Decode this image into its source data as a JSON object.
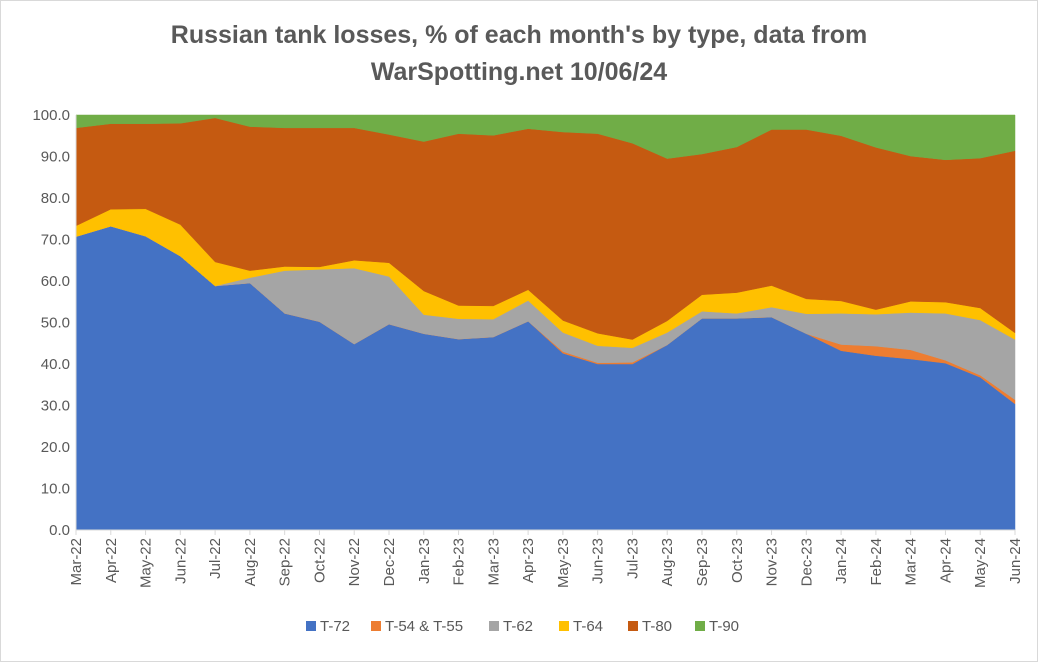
{
  "chart_data": {
    "type": "area",
    "stacked": true,
    "title_lines": [
      "Russian tank losses, % of each month's by type, data from",
      "WarSpotting.net 10/06/24"
    ],
    "categories": [
      "Mar-22",
      "Apr-22",
      "May-22",
      "Jun-22",
      "Jul-22",
      "Aug-22",
      "Sep-22",
      "Oct-22",
      "Nov-22",
      "Dec-22",
      "Jan-23",
      "Feb-23",
      "Mar-23",
      "Apr-23",
      "May-23",
      "Jun-23",
      "Jul-23",
      "Aug-23",
      "Sep-23",
      "Oct-23",
      "Nov-23",
      "Dec-23",
      "Jan-24",
      "Feb-24",
      "Mar-24",
      "Apr-24",
      "May-24",
      "Jun-24"
    ],
    "ylim": [
      0,
      100
    ],
    "yticks": [
      "0.0",
      "10.0",
      "20.0",
      "30.0",
      "40.0",
      "50.0",
      "60.0",
      "70.0",
      "80.0",
      "90.0",
      "100.0"
    ],
    "series": [
      {
        "name": "T-72",
        "color": "#4472c4",
        "values": [
          70.7,
          73.2,
          70.8,
          66.0,
          58.8,
          59.5,
          52.2,
          50.2,
          44.8,
          49.6,
          47.3,
          46.0,
          46.5,
          50.3,
          42.6,
          40.0,
          40.0,
          44.6,
          51.0,
          51.0,
          51.3,
          47.3,
          43.2,
          42.0,
          41.2,
          40.2,
          36.8,
          30.4
        ]
      },
      {
        "name": "T-54 & T-55",
        "color": "#ed7d31",
        "values": [
          0,
          0,
          0,
          0,
          0,
          0,
          0,
          0,
          0,
          0,
          0,
          0,
          0,
          0,
          0.4,
          0.3,
          0.4,
          0,
          0,
          0,
          0,
          0,
          1.5,
          2.3,
          2.2,
          0.7,
          0.5,
          1.0
        ]
      },
      {
        "name": "T-62",
        "color": "#a5a5a5",
        "values": [
          0,
          0,
          0,
          0,
          0,
          1.3,
          10.3,
          12.6,
          18.3,
          11.5,
          4.6,
          4.9,
          4.3,
          5.0,
          4.6,
          4.1,
          3.5,
          3.0,
          1.7,
          1.2,
          2.4,
          4.8,
          7.5,
          7.7,
          9.0,
          11.3,
          13.3,
          14.5
        ]
      },
      {
        "name": "T-64",
        "color": "#ffc000",
        "values": [
          2.6,
          4.1,
          6.6,
          7.6,
          5.8,
          1.7,
          1.0,
          0.6,
          1.9,
          3.3,
          5.7,
          3.2,
          3.2,
          2.6,
          2.9,
          3.0,
          2.0,
          2.8,
          4.0,
          5.0,
          5.2,
          3.6,
          3.0,
          1.1,
          2.7,
          2.7,
          2.9,
          1.6
        ]
      },
      {
        "name": "T-80",
        "color": "#c55a11",
        "values": [
          23.6,
          20.6,
          20.5,
          24.4,
          34.7,
          34.7,
          33.4,
          33.5,
          31.9,
          30.9,
          36.0,
          41.4,
          41.1,
          38.8,
          45.4,
          48.1,
          47.3,
          39.1,
          33.9,
          35.1,
          37.6,
          40.8,
          39.8,
          39.1,
          35.0,
          34.3,
          36.1,
          43.9
        ]
      },
      {
        "name": "T-90",
        "color": "#70ad47",
        "values": [
          3.1,
          2.1,
          2.1,
          2.0,
          0.7,
          2.8,
          3.1,
          3.1,
          3.1,
          4.7,
          6.4,
          4.5,
          4.9,
          3.3,
          4.1,
          4.5,
          6.8,
          10.5,
          9.4,
          7.7,
          3.5,
          3.5,
          5.0,
          7.8,
          9.9,
          10.8,
          10.4,
          8.6
        ]
      }
    ],
    "legend_position": "bottom",
    "grid": false
  }
}
